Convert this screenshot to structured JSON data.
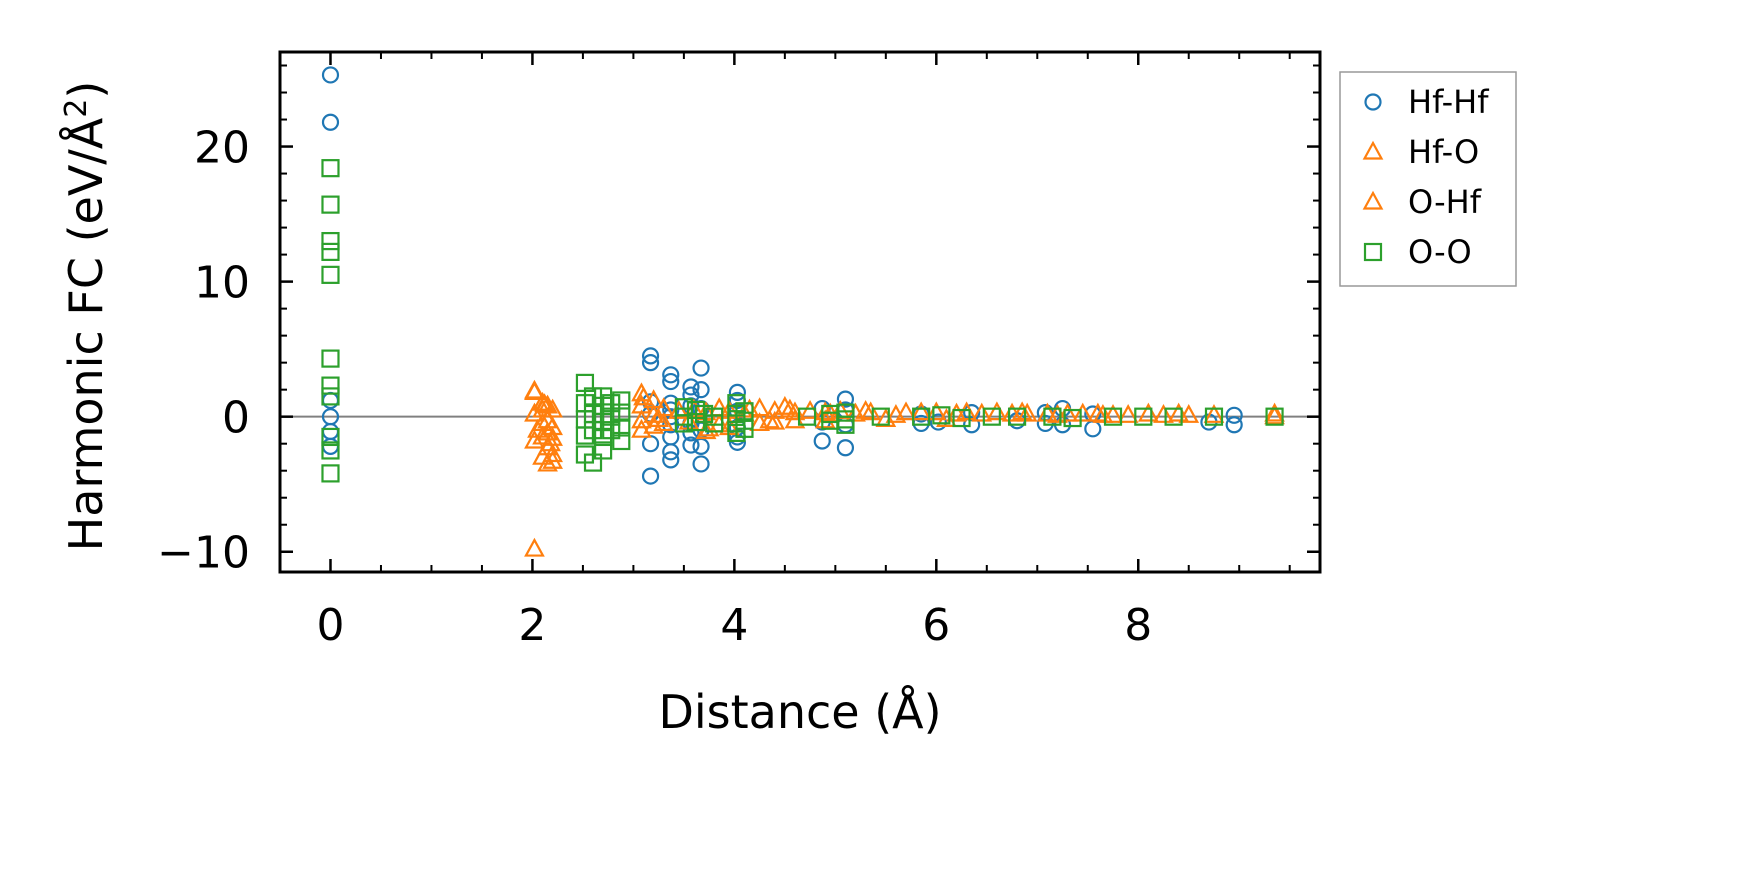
{
  "chart_data": {
    "type": "scatter",
    "xlabel": "Distance (Å)",
    "ylabel": "Harmonic FC (eV/Å",
    "ylabel_sup": "2",
    "ylabel_close": ")",
    "xlim": [
      -0.5,
      9.8
    ],
    "ylim": [
      -11.5,
      27
    ],
    "xticks": [
      0,
      2,
      4,
      6,
      8
    ],
    "xtick_labels": [
      "0",
      "2",
      "4",
      "6",
      "8"
    ],
    "yticks": [
      -10,
      0,
      10,
      20
    ],
    "ytick_labels": [
      "−10",
      "0",
      "10",
      "20"
    ],
    "x_minor_step": 0.5,
    "y_minor_step": 2,
    "zero_line": true,
    "grid": false,
    "legend_position": "outside-top-right",
    "series": [
      {
        "name": "Hf-Hf",
        "marker": "circle",
        "color": "#1f77b4",
        "points": [
          [
            0,
            25.3
          ],
          [
            0,
            21.8
          ],
          [
            0,
            1.2
          ],
          [
            0,
            0
          ],
          [
            0,
            -1.1
          ],
          [
            0,
            -2.2
          ],
          [
            3.17,
            4.5
          ],
          [
            3.17,
            4.0
          ],
          [
            3.17,
            1.1
          ],
          [
            3.17,
            0.2
          ],
          [
            3.17,
            -2.0
          ],
          [
            3.17,
            -4.4
          ],
          [
            3.37,
            3.1
          ],
          [
            3.37,
            2.6
          ],
          [
            3.37,
            1.0
          ],
          [
            3.37,
            0.5
          ],
          [
            3.37,
            0
          ],
          [
            3.37,
            -0.6
          ],
          [
            3.37,
            -1.5
          ],
          [
            3.37,
            -2.6
          ],
          [
            3.37,
            -3.2
          ],
          [
            3.57,
            2.2
          ],
          [
            3.57,
            1.6
          ],
          [
            3.57,
            0.8
          ],
          [
            3.57,
            -0.5
          ],
          [
            3.57,
            -1.2
          ],
          [
            3.57,
            -2.1
          ],
          [
            3.67,
            3.6
          ],
          [
            3.67,
            2.0
          ],
          [
            3.67,
            0.6
          ],
          [
            3.67,
            -1.0
          ],
          [
            3.67,
            -2.2
          ],
          [
            3.67,
            -3.5
          ],
          [
            4.03,
            1.8
          ],
          [
            4.03,
            1.2
          ],
          [
            4.03,
            0.4
          ],
          [
            4.03,
            -0.8
          ],
          [
            4.03,
            -1.5
          ],
          [
            4.03,
            -1.9
          ],
          [
            4.87,
            0.6
          ],
          [
            4.87,
            -0.4
          ],
          [
            4.87,
            -1.8
          ],
          [
            5.1,
            1.3
          ],
          [
            5.1,
            0.5
          ],
          [
            5.1,
            -0.6
          ],
          [
            5.1,
            -2.3
          ],
          [
            5.85,
            -0.5
          ],
          [
            5.85,
            0.2
          ],
          [
            6.02,
            -0.4
          ],
          [
            6.35,
            0.3
          ],
          [
            6.35,
            -0.6
          ],
          [
            6.8,
            -0.3
          ],
          [
            7.08,
            -0.5
          ],
          [
            7.08,
            0.3
          ],
          [
            7.25,
            0.6
          ],
          [
            7.25,
            -0.6
          ],
          [
            7.55,
            0.2
          ],
          [
            7.55,
            -0.9
          ],
          [
            8.7,
            -0.4
          ],
          [
            8.95,
            0.1
          ],
          [
            8.95,
            -0.6
          ]
        ]
      },
      {
        "name": "Hf-O",
        "marker": "triangle",
        "color": "#ff7f0e",
        "points": [
          [
            2.02,
            1.8
          ],
          [
            2.02,
            0.2
          ],
          [
            2.02,
            -1.8
          ],
          [
            2.02,
            -9.8
          ],
          [
            2.1,
            1.0
          ],
          [
            2.1,
            0.5
          ],
          [
            2.1,
            -0.5
          ],
          [
            2.1,
            -1.5
          ],
          [
            2.1,
            -3.0
          ],
          [
            2.15,
            0.8
          ],
          [
            2.15,
            -0.3
          ],
          [
            2.15,
            -1.2
          ],
          [
            2.15,
            -2.3
          ],
          [
            2.15,
            -3.5
          ],
          [
            2.2,
            0.5
          ],
          [
            2.2,
            -0.8
          ],
          [
            2.2,
            -1.6
          ],
          [
            2.2,
            -2.8
          ],
          [
            3.08,
            1.7
          ],
          [
            3.08,
            0.8
          ],
          [
            3.08,
            -0.3
          ],
          [
            3.08,
            -1.0
          ],
          [
            3.2,
            1.2
          ],
          [
            3.2,
            0.1
          ],
          [
            3.2,
            -0.7
          ],
          [
            3.3,
            0.6
          ],
          [
            3.3,
            -0.5
          ],
          [
            3.45,
            0.4
          ],
          [
            3.55,
            -0.4
          ],
          [
            3.72,
            0.3
          ],
          [
            3.72,
            -1.1
          ],
          [
            3.85,
            0.6
          ],
          [
            3.85,
            -0.6
          ],
          [
            3.95,
            0.4
          ],
          [
            3.95,
            -0.8
          ],
          [
            4.1,
            0.2
          ],
          [
            4.25,
            0.6
          ],
          [
            4.25,
            -0.5
          ],
          [
            4.4,
            0.4
          ],
          [
            4.4,
            -0.4
          ],
          [
            4.5,
            0.7
          ],
          [
            4.6,
            0.3
          ],
          [
            4.6,
            -0.3
          ],
          [
            4.75,
            0.4
          ],
          [
            4.9,
            0.3
          ],
          [
            4.9,
            -0.3
          ],
          [
            5.05,
            0.4
          ],
          [
            5.2,
            0.2
          ],
          [
            5.35,
            0.3
          ],
          [
            5.5,
            -0.2
          ],
          [
            5.7,
            0.3
          ],
          [
            5.85,
            0.3
          ],
          [
            6.0,
            0.3
          ],
          [
            6.1,
            -0.2
          ],
          [
            6.3,
            0.3
          ],
          [
            6.45,
            0.2
          ],
          [
            6.6,
            0.3
          ],
          [
            6.75,
            0.2
          ],
          [
            6.9,
            0.2
          ],
          [
            7.1,
            0.2
          ],
          [
            7.3,
            0.2
          ],
          [
            7.45,
            0.2
          ],
          [
            7.6,
            0.2
          ],
          [
            7.75,
            0.1
          ],
          [
            7.9,
            0.1
          ],
          [
            8.1,
            0.2
          ],
          [
            8.25,
            0.1
          ],
          [
            8.5,
            0.1
          ],
          [
            8.75,
            0.1
          ],
          [
            9.35,
            0.2
          ]
        ]
      },
      {
        "name": "O-Hf",
        "marker": "triangle",
        "color": "#ff7f0e",
        "points": [
          [
            2.02,
            1.9
          ],
          [
            2.05,
            -1.0
          ],
          [
            2.12,
            0.9
          ],
          [
            2.18,
            -2.0
          ],
          [
            2.2,
            -3.3
          ],
          [
            3.1,
            1.4
          ],
          [
            3.25,
            -0.2
          ],
          [
            3.6,
            0.5
          ],
          [
            3.75,
            -0.9
          ],
          [
            4.15,
            0.5
          ],
          [
            4.35,
            -0.3
          ],
          [
            4.55,
            0.5
          ],
          [
            4.95,
            0.2
          ],
          [
            5.3,
            0.4
          ],
          [
            5.6,
            0.1
          ],
          [
            6.2,
            0.2
          ],
          [
            6.85,
            0.3
          ],
          [
            7.2,
            0.1
          ],
          [
            7.65,
            0.1
          ],
          [
            8.4,
            0.2
          ],
          [
            9.35,
            0
          ]
        ]
      },
      {
        "name": "O-O",
        "marker": "square",
        "color": "#2ca02c",
        "points": [
          [
            0,
            18.4
          ],
          [
            0,
            15.7
          ],
          [
            0,
            13.0
          ],
          [
            0,
            12.2
          ],
          [
            0,
            10.5
          ],
          [
            0,
            4.3
          ],
          [
            0,
            2.3
          ],
          [
            0,
            1.5
          ],
          [
            0,
            -1.5
          ],
          [
            0,
            -2.5
          ],
          [
            0,
            -4.2
          ],
          [
            2.52,
            2.5
          ],
          [
            2.52,
            1.0
          ],
          [
            2.52,
            -0.2
          ],
          [
            2.52,
            -1.4
          ],
          [
            2.52,
            -2.8
          ],
          [
            2.6,
            1.5
          ],
          [
            2.6,
            0.2
          ],
          [
            2.6,
            -1.0
          ],
          [
            2.6,
            -3.4
          ],
          [
            2.7,
            1.5
          ],
          [
            2.7,
            0.8
          ],
          [
            2.7,
            -0.4
          ],
          [
            2.7,
            -1.5
          ],
          [
            2.7,
            -2.5
          ],
          [
            2.78,
            1.0
          ],
          [
            2.78,
            0
          ],
          [
            2.78,
            -1.0
          ],
          [
            2.88,
            1.2
          ],
          [
            2.88,
            0.3
          ],
          [
            2.88,
            -0.8
          ],
          [
            2.88,
            -1.8
          ],
          [
            3.5,
            0.7
          ],
          [
            3.5,
            0
          ],
          [
            3.5,
            -0.5
          ],
          [
            3.62,
            0.5
          ],
          [
            3.62,
            -0.4
          ],
          [
            3.7,
            0.2
          ],
          [
            3.8,
            0
          ],
          [
            3.8,
            -0.5
          ],
          [
            4.02,
            1.0
          ],
          [
            4.02,
            0.2
          ],
          [
            4.02,
            -0.5
          ],
          [
            4.02,
            -1.2
          ],
          [
            4.1,
            0.4
          ],
          [
            4.1,
            -0.3
          ],
          [
            4.1,
            -0.9
          ],
          [
            4.72,
            0
          ],
          [
            4.95,
            0.2
          ],
          [
            4.95,
            -0.3
          ],
          [
            5.1,
            0.3
          ],
          [
            5.1,
            -0.2
          ],
          [
            5.1,
            -0.6
          ],
          [
            5.45,
            0
          ],
          [
            5.85,
            0
          ],
          [
            6.05,
            0.1
          ],
          [
            6.25,
            -0.1
          ],
          [
            6.55,
            0
          ],
          [
            6.8,
            0
          ],
          [
            7.15,
            0
          ],
          [
            7.35,
            -0.1
          ],
          [
            7.75,
            0
          ],
          [
            8.05,
            0
          ],
          [
            8.35,
            0
          ],
          [
            8.75,
            0
          ],
          [
            9.35,
            0
          ]
        ]
      }
    ]
  }
}
